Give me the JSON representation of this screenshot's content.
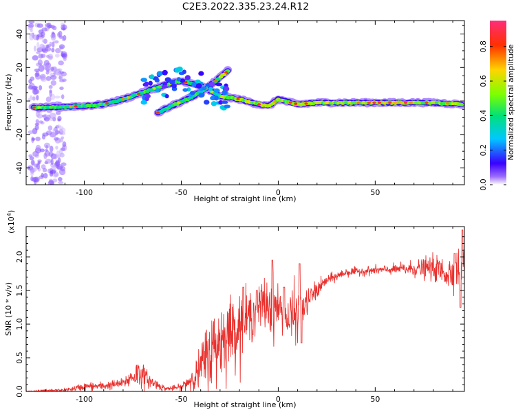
{
  "chart_data": [
    {
      "type": "heatmap",
      "title": "C2E3.2022.335.23.24.R12",
      "xlabel": "Height of straight line (km)",
      "ylabel": "Frequency (Hz)",
      "xlim": [
        -130,
        96
      ],
      "ylim": [
        -50,
        48
      ],
      "xticks": [
        -100,
        -50,
        0,
        50
      ],
      "yticks": [
        -40,
        -20,
        0,
        20,
        40
      ],
      "colorbar": {
        "label": "Normalized spectral amplitude",
        "range": [
          0.0,
          0.95
        ],
        "ticks": [
          0.0,
          0.2,
          0.4,
          0.6,
          0.8
        ],
        "tick_labels": [
          "0.0",
          "0.2",
          "0.4",
          "0.6",
          "0.8"
        ]
      },
      "ridge_main": [
        {
          "x": -125,
          "y": -4
        },
        {
          "x": -110,
          "y": -3.5
        },
        {
          "x": -100,
          "y": -3
        },
        {
          "x": -90,
          "y": -2
        },
        {
          "x": -80,
          "y": 1
        },
        {
          "x": -70,
          "y": 5
        },
        {
          "x": -60,
          "y": 9
        },
        {
          "x": -50,
          "y": 12
        },
        {
          "x": -40,
          "y": 9
        },
        {
          "x": -30,
          "y": 3
        },
        {
          "x": -20,
          "y": 1
        },
        {
          "x": -10,
          "y": -2
        },
        {
          "x": -5,
          "y": -3
        },
        {
          "x": 0,
          "y": 1
        },
        {
          "x": 10,
          "y": -2
        },
        {
          "x": 20,
          "y": -1
        },
        {
          "x": 40,
          "y": -1
        },
        {
          "x": 60,
          "y": -1
        },
        {
          "x": 80,
          "y": -1
        },
        {
          "x": 95,
          "y": -2
        }
      ],
      "ridge_branch": [
        {
          "x": -62,
          "y": -7
        },
        {
          "x": -55,
          "y": -3
        },
        {
          "x": -45,
          "y": 2
        },
        {
          "x": -38,
          "y": 7
        },
        {
          "x": -32,
          "y": 12
        },
        {
          "x": -26,
          "y": 18
        }
      ]
    },
    {
      "type": "line",
      "xlabel": "Height of straight line (km)",
      "ylabel": "SNR (10 * v/v)",
      "y_multiplier": "(x10",
      "y_multiplier_exp": "4",
      "y_multiplier_close": ")",
      "xlim": [
        -130,
        96
      ],
      "ylim": [
        0,
        2.45
      ],
      "xticks": [
        -100,
        -50,
        0,
        50
      ],
      "yticks": [
        0.0,
        0.5,
        1.0,
        1.5,
        2.0
      ],
      "color": "#e8312e",
      "trend": [
        {
          "x": -130,
          "y": 0.0
        },
        {
          "x": -110,
          "y": 0.02
        },
        {
          "x": -100,
          "y": 0.07
        },
        {
          "x": -90,
          "y": 0.08
        },
        {
          "x": -80,
          "y": 0.12
        },
        {
          "x": -72,
          "y": 0.28
        },
        {
          "x": -66,
          "y": 0.15
        },
        {
          "x": -58,
          "y": 0.04
        },
        {
          "x": -50,
          "y": 0.06
        },
        {
          "x": -42,
          "y": 0.25
        },
        {
          "x": -36,
          "y": 0.55
        },
        {
          "x": -30,
          "y": 0.75
        },
        {
          "x": -22,
          "y": 0.95
        },
        {
          "x": -15,
          "y": 1.1
        },
        {
          "x": -8,
          "y": 1.3
        },
        {
          "x": 0,
          "y": 1.25
        },
        {
          "x": 5,
          "y": 1.05
        },
        {
          "x": 12,
          "y": 1.2
        },
        {
          "x": 18,
          "y": 1.45
        },
        {
          "x": 25,
          "y": 1.65
        },
        {
          "x": 35,
          "y": 1.77
        },
        {
          "x": 50,
          "y": 1.8
        },
        {
          "x": 65,
          "y": 1.82
        },
        {
          "x": 80,
          "y": 1.83
        },
        {
          "x": 88,
          "y": 1.75
        },
        {
          "x": 96,
          "y": 1.9
        }
      ],
      "noise": [
        {
          "x": -130,
          "a": 0.01
        },
        {
          "x": -110,
          "a": 0.02
        },
        {
          "x": -100,
          "a": 0.06
        },
        {
          "x": -80,
          "a": 0.07
        },
        {
          "x": -72,
          "a": 0.22
        },
        {
          "x": -66,
          "a": 0.1
        },
        {
          "x": -58,
          "a": 0.03
        },
        {
          "x": -50,
          "a": 0.05
        },
        {
          "x": -42,
          "a": 0.25
        },
        {
          "x": -36,
          "a": 0.55
        },
        {
          "x": -30,
          "a": 0.6
        },
        {
          "x": -22,
          "a": 0.5
        },
        {
          "x": -12,
          "a": 0.35
        },
        {
          "x": -4,
          "a": 0.45
        },
        {
          "x": 2,
          "a": 0.3
        },
        {
          "x": 8,
          "a": 0.45
        },
        {
          "x": 14,
          "a": 0.2
        },
        {
          "x": 25,
          "a": 0.08
        },
        {
          "x": 40,
          "a": 0.06
        },
        {
          "x": 60,
          "a": 0.07
        },
        {
          "x": 75,
          "a": 0.15
        },
        {
          "x": 85,
          "a": 0.22
        },
        {
          "x": 96,
          "a": 0.35
        }
      ],
      "spikes": [
        {
          "x": -18,
          "y": 1.55
        },
        {
          "x": -11,
          "y": 1.5
        },
        {
          "x": -3,
          "y": 1.95
        },
        {
          "x": 3,
          "y": 1.55
        },
        {
          "x": 11,
          "y": 1.9
        },
        {
          "x": 12,
          "y": 0.72
        },
        {
          "x": 91,
          "y": 2.05
        },
        {
          "x": 94,
          "y": 1.25
        },
        {
          "x": 95,
          "y": 2.4
        }
      ]
    }
  ]
}
